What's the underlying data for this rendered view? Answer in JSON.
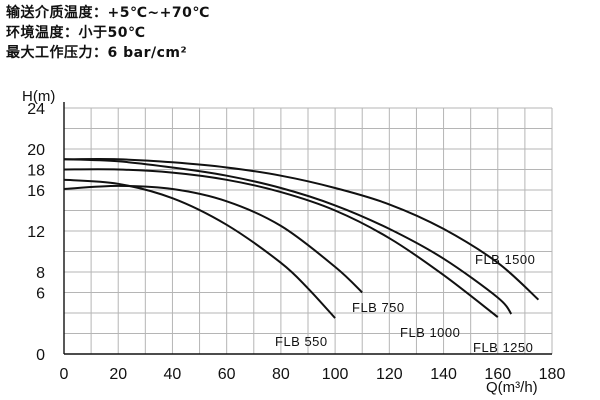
{
  "specs": [
    "输送介质温度：+5℃~+70℃",
    "环境温度：小于50℃",
    "最大工作压力：6 bar/cm²"
  ],
  "chart_data": {
    "type": "line",
    "title": "",
    "xlabel": "Q(m³/h)",
    "ylabel": "H(m)",
    "xlim": [
      0,
      180
    ],
    "ylim": [
      0,
      24
    ],
    "x_ticks": [
      0,
      20,
      40,
      60,
      80,
      100,
      120,
      140,
      160,
      180
    ],
    "y_ticks": [
      0,
      6,
      8,
      12,
      16,
      18,
      20,
      24
    ],
    "grid": true,
    "series": [
      {
        "name": "FLB 550",
        "x": [
          0,
          20,
          40,
          60,
          80,
          90,
          100
        ],
        "y": [
          17.0,
          16.6,
          15.2,
          12.6,
          8.9,
          6.4,
          3.5
        ]
      },
      {
        "name": "FLB 750",
        "x": [
          0,
          20,
          40,
          60,
          80,
          100,
          110
        ],
        "y": [
          16.1,
          16.4,
          16.1,
          14.9,
          12.5,
          8.5,
          6.0
        ]
      },
      {
        "name": "FLB 1000",
        "x": [
          0,
          20,
          40,
          60,
          80,
          100,
          120,
          140,
          160
        ],
        "y": [
          18.0,
          18.0,
          17.7,
          17.0,
          15.8,
          14.0,
          11.3,
          7.7,
          3.6
        ]
      },
      {
        "name": "FLB 1250",
        "x": [
          0,
          20,
          40,
          60,
          80,
          100,
          120,
          140,
          160,
          165
        ],
        "y": [
          19.0,
          18.8,
          18.2,
          17.4,
          16.2,
          14.5,
          12.2,
          9.3,
          5.5,
          3.9
        ]
      },
      {
        "name": "FLB 1500",
        "x": [
          0,
          20,
          40,
          60,
          80,
          100,
          120,
          140,
          160,
          175
        ],
        "y": [
          19.0,
          19.0,
          18.7,
          18.2,
          17.4,
          16.2,
          14.6,
          12.2,
          8.9,
          5.3
        ]
      }
    ]
  }
}
